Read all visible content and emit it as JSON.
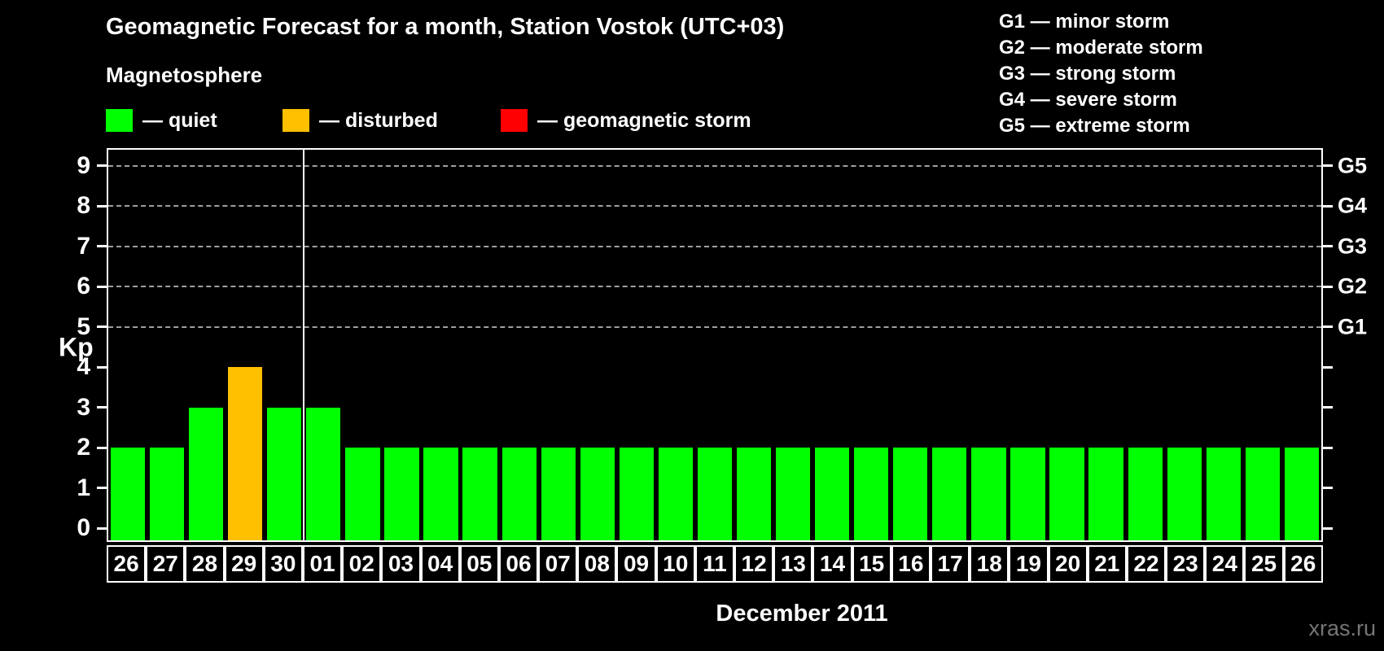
{
  "title": "Geomagnetic Forecast for a month, Station Vostok (UTC+03)",
  "watermark": "xras.ru",
  "magnetosphere_legend": {
    "heading": "Magnetosphere",
    "items": [
      {
        "status": "quiet",
        "label": "— quiet",
        "color": "#00ff00"
      },
      {
        "status": "disturbed",
        "label": "— disturbed",
        "color": "#ffc000"
      },
      {
        "status": "storm",
        "label": "— geomagnetic storm",
        "color": "#ff0000"
      }
    ]
  },
  "g_scale_legend": [
    "G1 — minor storm",
    "G2 — moderate storm",
    "G3 — strong storm",
    "G4 — severe storm",
    "G5 — extreme storm"
  ],
  "chart_data": {
    "type": "bar",
    "title": "Geomagnetic Forecast for a month, Station Vostok (UTC+03)",
    "xlabel": "December 2011",
    "ylabel": "Kp",
    "ylim": [
      0,
      9
    ],
    "y_ticks": [
      0,
      1,
      2,
      3,
      4,
      5,
      6,
      7,
      8,
      9
    ],
    "grid": "dashed horizontal lines at Kp 5-9",
    "legend_position": "top",
    "right_axis_labels": [
      {
        "kp": 5,
        "label": "G1"
      },
      {
        "kp": 6,
        "label": "G2"
      },
      {
        "kp": 7,
        "label": "G3"
      },
      {
        "kp": 8,
        "label": "G4"
      },
      {
        "kp": 9,
        "label": "G5"
      }
    ],
    "categories": [
      "26",
      "27",
      "28",
      "29",
      "30",
      "01",
      "02",
      "03",
      "04",
      "05",
      "06",
      "07",
      "08",
      "09",
      "10",
      "11",
      "12",
      "13",
      "14",
      "15",
      "16",
      "17",
      "18",
      "19",
      "20",
      "21",
      "22",
      "23",
      "24",
      "25",
      "26"
    ],
    "values": [
      2,
      2,
      3,
      4,
      3,
      3,
      2,
      2,
      2,
      2,
      2,
      2,
      2,
      2,
      2,
      2,
      2,
      2,
      2,
      2,
      2,
      2,
      2,
      2,
      2,
      2,
      2,
      2,
      2,
      2,
      2
    ],
    "statuses": [
      "quiet",
      "quiet",
      "quiet",
      "disturbed",
      "quiet",
      "quiet",
      "quiet",
      "quiet",
      "quiet",
      "quiet",
      "quiet",
      "quiet",
      "quiet",
      "quiet",
      "quiet",
      "quiet",
      "quiet",
      "quiet",
      "quiet",
      "quiet",
      "quiet",
      "quiet",
      "quiet",
      "quiet",
      "quiet",
      "quiet",
      "quiet",
      "quiet",
      "quiet",
      "quiet",
      "quiet"
    ],
    "status_colors": {
      "quiet": "#00ff00",
      "disturbed": "#ffc000",
      "storm": "#ff0000"
    },
    "month_separator_after_index": 4
  }
}
